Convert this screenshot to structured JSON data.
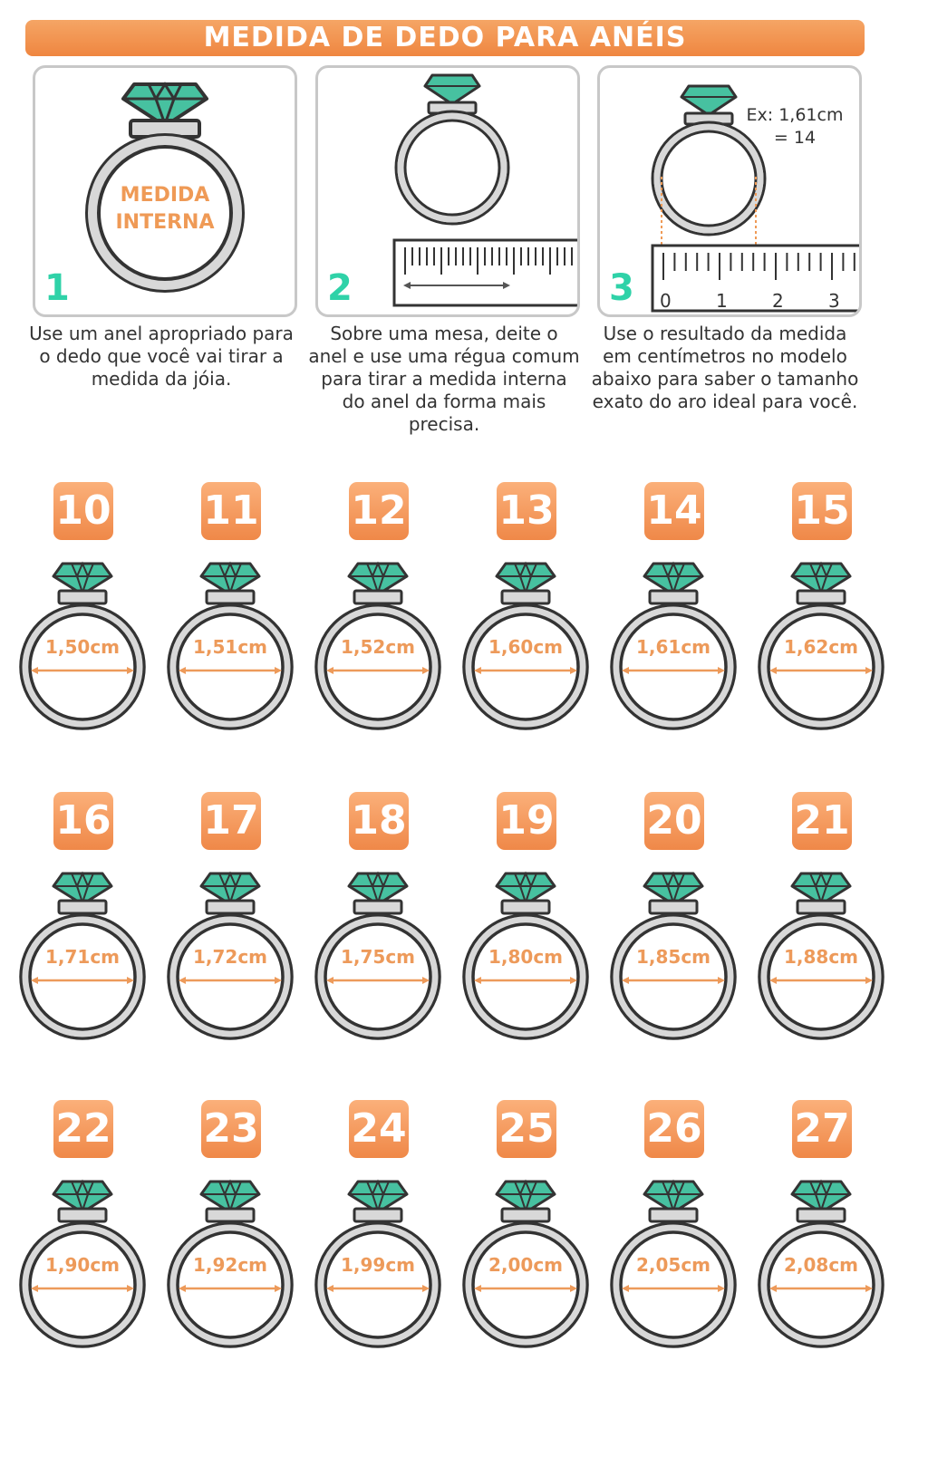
{
  "title": "MEDIDA DE DEDO PARA ANÉIS",
  "steps": [
    {
      "number": "1",
      "ring_label_1": "MEDIDA",
      "ring_label_2": "INTERNA",
      "caption": "Use um anel apropriado para o dedo que você vai tirar a medida da jóia."
    },
    {
      "number": "2",
      "caption": "Sobre uma mesa, deite o anel e use uma régua comum para tirar a medida interna do anel da forma mais precisa."
    },
    {
      "number": "3",
      "example_1": "Ex: 1,61cm",
      "example_2": "= 14",
      "ruler_labels": [
        "0",
        "1",
        "2",
        "3"
      ],
      "caption": "Use o resultado da medida em centímetros no modelo abaixo para saber o tamanho exato do aro ideal para você."
    }
  ],
  "sizes": [
    {
      "size": "10",
      "measure": "1,50cm"
    },
    {
      "size": "11",
      "measure": "1,51cm"
    },
    {
      "size": "12",
      "measure": "1,52cm"
    },
    {
      "size": "13",
      "measure": "1,60cm"
    },
    {
      "size": "14",
      "measure": "1,61cm"
    },
    {
      "size": "15",
      "measure": "1,62cm"
    },
    {
      "size": "16",
      "measure": "1,71cm"
    },
    {
      "size": "17",
      "measure": "1,72cm"
    },
    {
      "size": "18",
      "measure": "1,75cm"
    },
    {
      "size": "19",
      "measure": "1,80cm"
    },
    {
      "size": "20",
      "measure": "1,85cm"
    },
    {
      "size": "21",
      "measure": "1,88cm"
    },
    {
      "size": "22",
      "measure": "1,90cm"
    },
    {
      "size": "23",
      "measure": "1,92cm"
    },
    {
      "size": "24",
      "measure": "1,99cm"
    },
    {
      "size": "25",
      "measure": "2,00cm"
    },
    {
      "size": "26",
      "measure": "2,05cm"
    },
    {
      "size": "27",
      "measure": "2,08cm"
    }
  ],
  "colors": {
    "accent": "#ef8640",
    "gem": "#47c1a0",
    "gem_dark": "#2d8f77",
    "outline": "#333333",
    "measure_text": "#ed9a5a"
  }
}
